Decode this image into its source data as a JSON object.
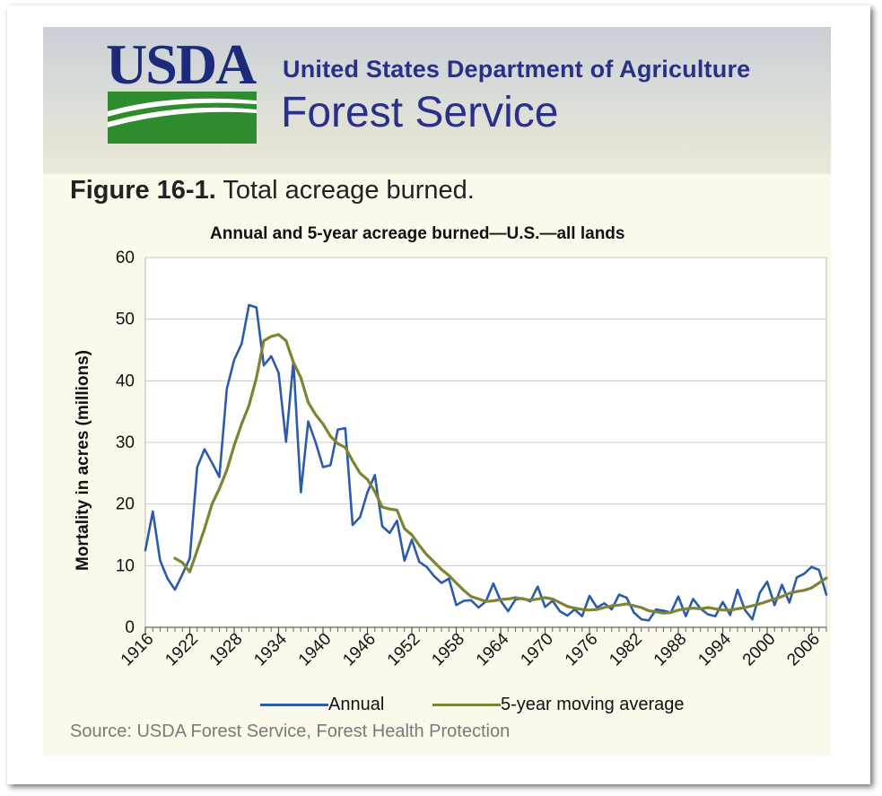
{
  "header": {
    "logo_text": "USDA",
    "department": "United States Department of Agriculture",
    "agency": "Forest Service"
  },
  "figure": {
    "label": "Figure 16-1.",
    "caption": "Total acreage burned.",
    "source": "Source: USDA Forest Service, Forest Health Protection"
  },
  "colors": {
    "annual": "#2a5caa",
    "moving_average": "#7f8434",
    "grid": "#c8c8c8",
    "brand_blue": "#2a2f8a",
    "logo_green": "#2e8b2e"
  },
  "chart_data": {
    "type": "line",
    "title": "Annual and 5-year acreage burned—U.S.—all lands",
    "xlabel": "",
    "ylabel": "Mortality in acres (millions)",
    "xlim": [
      1916,
      2008
    ],
    "ylim": [
      0,
      60
    ],
    "yticks": [
      0,
      10,
      20,
      30,
      40,
      50,
      60
    ],
    "xticks": [
      1916,
      1922,
      1928,
      1934,
      1940,
      1946,
      1952,
      1958,
      1964,
      1970,
      1976,
      1982,
      1988,
      1994,
      2000,
      2006
    ],
    "grid": true,
    "legend_position": "bottom",
    "series": [
      {
        "name": "Annual",
        "x": [
          1916,
          1917,
          1918,
          1919,
          1920,
          1921,
          1922,
          1923,
          1924,
          1925,
          1926,
          1927,
          1928,
          1929,
          1930,
          1931,
          1932,
          1933,
          1934,
          1935,
          1936,
          1937,
          1938,
          1939,
          1940,
          1941,
          1942,
          1943,
          1944,
          1945,
          1946,
          1947,
          1948,
          1949,
          1950,
          1951,
          1952,
          1953,
          1954,
          1955,
          1956,
          1957,
          1958,
          1959,
          1960,
          1961,
          1962,
          1963,
          1964,
          1965,
          1966,
          1967,
          1968,
          1969,
          1970,
          1971,
          1972,
          1973,
          1974,
          1975,
          1976,
          1977,
          1978,
          1979,
          1980,
          1981,
          1982,
          1983,
          1984,
          1985,
          1986,
          1987,
          1988,
          1989,
          1990,
          1991,
          1992,
          1993,
          1994,
          1995,
          1996,
          1997,
          1998,
          1999,
          2000,
          2001,
          2002,
          2003,
          2004,
          2005,
          2006,
          2007,
          2008
        ],
        "values": [
          12.5,
          18.8,
          10.8,
          7.9,
          6.1,
          8.6,
          11.2,
          26.0,
          28.9,
          26.7,
          24.4,
          38.7,
          43.4,
          46.0,
          52.3,
          51.9,
          42.5,
          44.0,
          41.3,
          30.1,
          43.2,
          21.9,
          33.4,
          30.0,
          26.0,
          26.3,
          32.1,
          32.3,
          16.6,
          17.9,
          21.9,
          24.7,
          16.4,
          15.3,
          17.3,
          10.8,
          14.2,
          10.6,
          9.8,
          8.3,
          7.2,
          7.9,
          3.6,
          4.3,
          4.4,
          3.2,
          4.2,
          7.1,
          4.3,
          2.6,
          4.5,
          4.7,
          4.2,
          6.6,
          3.3,
          4.3,
          2.6,
          1.9,
          2.9,
          1.8,
          5.1,
          3.2,
          3.9,
          2.9,
          5.3,
          4.8,
          2.4,
          1.3,
          1.1,
          2.9,
          2.7,
          2.4,
          5.0,
          1.8,
          4.6,
          3.0,
          2.1,
          1.8,
          4.1,
          2.0,
          6.1,
          2.8,
          1.3,
          5.6,
          7.4,
          3.6,
          6.9,
          4.0,
          8.1,
          8.7,
          9.8,
          9.3,
          5.3
        ]
      },
      {
        "name": "5-year moving average",
        "x": [
          1920,
          1921,
          1922,
          1923,
          1924,
          1925,
          1926,
          1927,
          1928,
          1929,
          1930,
          1931,
          1932,
          1933,
          1934,
          1935,
          1936,
          1937,
          1938,
          1939,
          1940,
          1941,
          1942,
          1943,
          1944,
          1945,
          1946,
          1947,
          1948,
          1949,
          1950,
          1951,
          1952,
          1953,
          1954,
          1955,
          1956,
          1957,
          1958,
          1959,
          1960,
          1961,
          1962,
          1963,
          1964,
          1965,
          1966,
          1967,
          1968,
          1969,
          1970,
          1971,
          1972,
          1973,
          1974,
          1975,
          1976,
          1977,
          1978,
          1979,
          1980,
          1981,
          1982,
          1983,
          1984,
          1985,
          1986,
          1987,
          1988,
          1989,
          1990,
          1991,
          1992,
          1993,
          1994,
          1995,
          1996,
          1997,
          1998,
          1999,
          2000,
          2001,
          2002,
          2003,
          2004,
          2005,
          2006,
          2007,
          2008
        ],
        "values": [
          11.2,
          10.5,
          9.0,
          12.5,
          16.0,
          20.0,
          22.5,
          25.5,
          29.5,
          33.0,
          36.0,
          40.5,
          46.5,
          47.2,
          47.5,
          46.5,
          43.0,
          40.5,
          36.5,
          34.5,
          33.0,
          31.0,
          29.8,
          29.2,
          27.0,
          25.0,
          24.0,
          22.0,
          19.5,
          19.2,
          19.0,
          16.0,
          15.0,
          13.3,
          11.8,
          10.6,
          9.4,
          8.4,
          7.2,
          6.0,
          5.0,
          4.6,
          4.2,
          4.3,
          4.5,
          4.6,
          4.8,
          4.6,
          4.4,
          4.6,
          4.8,
          4.6,
          4.0,
          3.4,
          3.1,
          2.9,
          2.8,
          2.9,
          3.2,
          3.5,
          3.6,
          3.8,
          3.5,
          3.2,
          2.7,
          2.5,
          2.3,
          2.4,
          2.8,
          3.0,
          3.1,
          3.0,
          3.2,
          3.0,
          2.8,
          2.8,
          3.0,
          3.2,
          3.5,
          3.8,
          4.2,
          4.6,
          5.0,
          5.5,
          5.8,
          6.0,
          6.4,
          7.2,
          8.0
        ]
      }
    ]
  }
}
